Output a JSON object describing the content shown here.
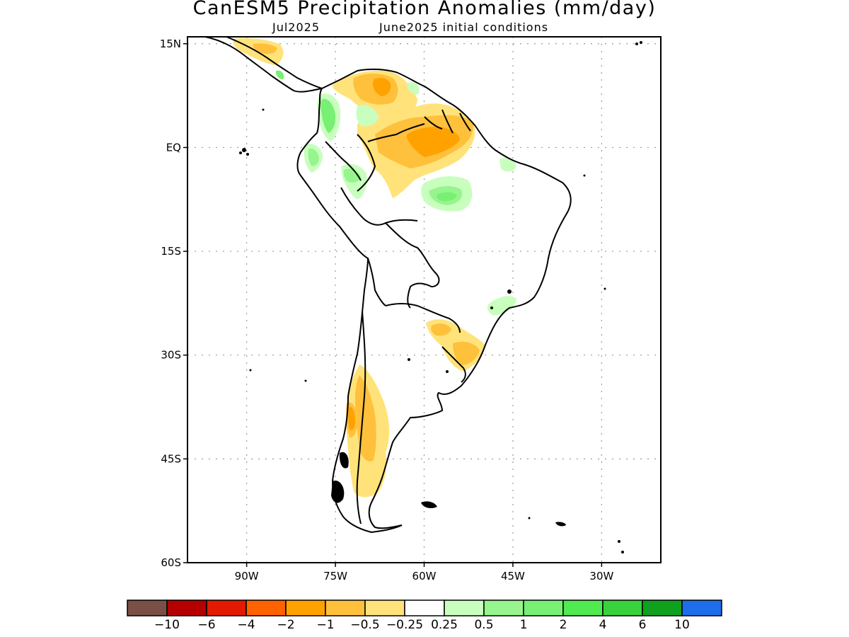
{
  "title": "CanESM5 Precipitation Anomalies (mm/day)",
  "subtitle_left": "Jul2025",
  "subtitle_right": "June2025 initial conditions",
  "map": {
    "lon_range": [
      -100,
      -20
    ],
    "lat_range": [
      -60,
      16
    ],
    "lat_ticks": [
      {
        "value": 15,
        "label": "15N"
      },
      {
        "value": 0,
        "label": "EQ"
      },
      {
        "value": -15,
        "label": "15S"
      },
      {
        "value": -30,
        "label": "30S"
      },
      {
        "value": -45,
        "label": "45S"
      },
      {
        "value": -60,
        "label": "60S"
      }
    ],
    "lon_ticks": [
      {
        "value": -90,
        "label": "90W"
      },
      {
        "value": -75,
        "label": "75W"
      },
      {
        "value": -60,
        "label": "60W"
      },
      {
        "value": -45,
        "label": "45W"
      },
      {
        "value": -30,
        "label": "30W"
      }
    ],
    "grid": "dotted"
  },
  "colorbar": {
    "colors": [
      "#7a5046",
      "#b50000",
      "#e21b00",
      "#ff6200",
      "#ffa200",
      "#ffc03c",
      "#ffe37a",
      "#ffffff",
      "#c8ffbe",
      "#96f58c",
      "#78f073",
      "#50eb50",
      "#37d23c",
      "#0fa01e",
      "#1e6eeb"
    ],
    "labels": [
      "-10",
      "-6",
      "-4",
      "-2",
      "-1",
      "-0.5",
      "-0.25",
      "0.25",
      "0.5",
      "1",
      "2",
      "4",
      "6",
      "10"
    ]
  },
  "regions": [
    {
      "name": "amazon-dry-anomaly",
      "value": -0.5
    },
    {
      "name": "guiana-dry-anomaly",
      "value": -1
    },
    {
      "name": "venezuela-dry-anomaly",
      "value": -1
    },
    {
      "name": "colombia-wet-anomaly",
      "value": 1
    },
    {
      "name": "ecuador-wet-anomaly",
      "value": 1
    },
    {
      "name": "central-amazon-wet-anomaly",
      "value": 1
    },
    {
      "name": "southern-brazil-dry-anomaly",
      "value": -1
    },
    {
      "name": "patagonia-dry-anomaly",
      "value": -0.5
    },
    {
      "name": "southern-andes-dry-anomaly",
      "value": -1
    }
  ]
}
